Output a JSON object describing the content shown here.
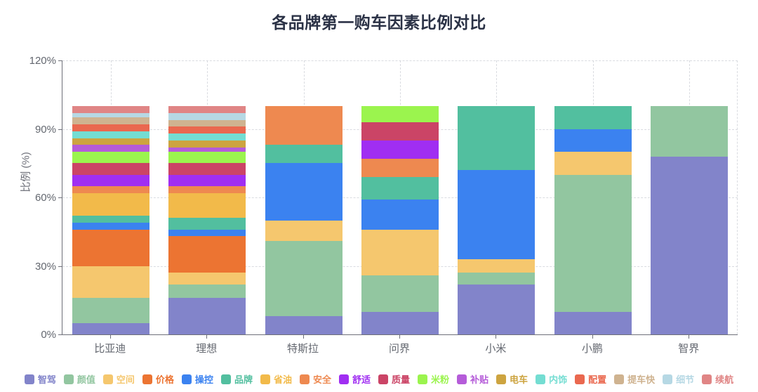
{
  "header": {
    "title": "各品牌第一购车因素比例对比"
  },
  "chart_data": {
    "type": "bar",
    "stacked": true,
    "title": "各品牌第一购车因素比例对比",
    "xlabel": "",
    "ylabel": "比例 (%)",
    "ylim": [
      0,
      120
    ],
    "ytick_labels": [
      "0%",
      "30%",
      "60%",
      "90%",
      "120%"
    ],
    "ytick_values": [
      0,
      30,
      60,
      90,
      120
    ],
    "grid": true,
    "legend_position": "bottom",
    "categories": [
      "比亚迪",
      "理想",
      "特斯拉",
      "问界",
      "小米",
      "小鹏",
      "智界"
    ],
    "series": [
      {
        "name": "智驾",
        "color": "#8284ca",
        "values": [
          5,
          16,
          8,
          10,
          22,
          10,
          78
        ]
      },
      {
        "name": "颜值",
        "color": "#92c6a0",
        "values": [
          11,
          6,
          33,
          16,
          5,
          60,
          22
        ]
      },
      {
        "name": "空间",
        "color": "#f5c76e",
        "values": [
          14,
          5,
          9,
          20,
          6,
          10,
          0
        ]
      },
      {
        "name": "价格",
        "color": "#ec7432",
        "values": [
          16,
          16,
          0,
          0,
          0,
          0,
          0
        ]
      },
      {
        "name": "操控",
        "color": "#3b82f0",
        "values": [
          3,
          3,
          25,
          13,
          39,
          10,
          0
        ]
      },
      {
        "name": "品牌",
        "color": "#52bf9f",
        "values": [
          3,
          5,
          8,
          10,
          28,
          10,
          0
        ]
      },
      {
        "name": "省油",
        "color": "#f2ba4a",
        "values": [
          10,
          11,
          0,
          0,
          0,
          0,
          0
        ]
      },
      {
        "name": "安全",
        "color": "#ee8950",
        "values": [
          3,
          3,
          17,
          8,
          0,
          0,
          0
        ]
      },
      {
        "name": "舒适",
        "color": "#a02ef2",
        "values": [
          5,
          5,
          0,
          8,
          0,
          0,
          0
        ]
      },
      {
        "name": "质量",
        "color": "#cb4466",
        "values": [
          5,
          5,
          0,
          8,
          0,
          0,
          0
        ]
      },
      {
        "name": "米粉",
        "color": "#9bf44e",
        "values": [
          5,
          5,
          0,
          7,
          0,
          0,
          0
        ]
      },
      {
        "name": "补贴",
        "color": "#b55cd9",
        "values": [
          3,
          2,
          0,
          0,
          0,
          0,
          0
        ]
      },
      {
        "name": "电车",
        "color": "#cda440",
        "values": [
          3,
          3,
          0,
          0,
          0,
          0,
          0
        ]
      },
      {
        "name": "内饰",
        "color": "#74ddd2",
        "values": [
          3,
          3,
          0,
          0,
          0,
          0,
          0
        ]
      },
      {
        "name": "配置",
        "color": "#ea684f",
        "values": [
          3,
          3,
          0,
          0,
          0,
          0,
          0
        ]
      },
      {
        "name": "提车快",
        "color": "#cfb390",
        "values": [
          3,
          3,
          0,
          0,
          0,
          0,
          0
        ]
      },
      {
        "name": "细节",
        "color": "#b6d8e4",
        "values": [
          2,
          3,
          0,
          0,
          0,
          0,
          0
        ]
      },
      {
        "name": "续航",
        "color": "#e08585",
        "values": [
          3,
          3,
          0,
          0,
          0,
          0,
          0
        ]
      }
    ]
  }
}
